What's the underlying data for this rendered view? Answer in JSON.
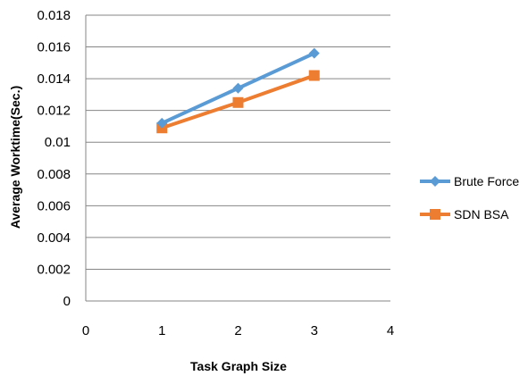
{
  "chart_data": {
    "type": "line",
    "title": "",
    "xlabel": "Task Graph Size",
    "ylabel": "Average Worktime(Sec.)",
    "xlim": [
      0,
      4
    ],
    "ylim": [
      0,
      0.018
    ],
    "x_ticks": [
      "0",
      "1",
      "2",
      "3",
      "4"
    ],
    "y_ticks": [
      "0",
      "0.002",
      "0.004",
      "0.006",
      "0.008",
      "0.01",
      "0.012",
      "0.014",
      "0.016",
      "0.018"
    ],
    "grid": "horizontal",
    "legend_position": "right",
    "series": [
      {
        "name": "Brute Force",
        "color": "#5b9bd5",
        "marker": "diamond",
        "x": [
          1,
          2,
          3
        ],
        "y": [
          0.0112,
          0.0134,
          0.0156
        ]
      },
      {
        "name": "SDN BSA",
        "color": "#ed7d31",
        "marker": "square",
        "x": [
          1,
          2,
          3
        ],
        "y": [
          0.0109,
          0.0125,
          0.0142
        ]
      }
    ]
  }
}
